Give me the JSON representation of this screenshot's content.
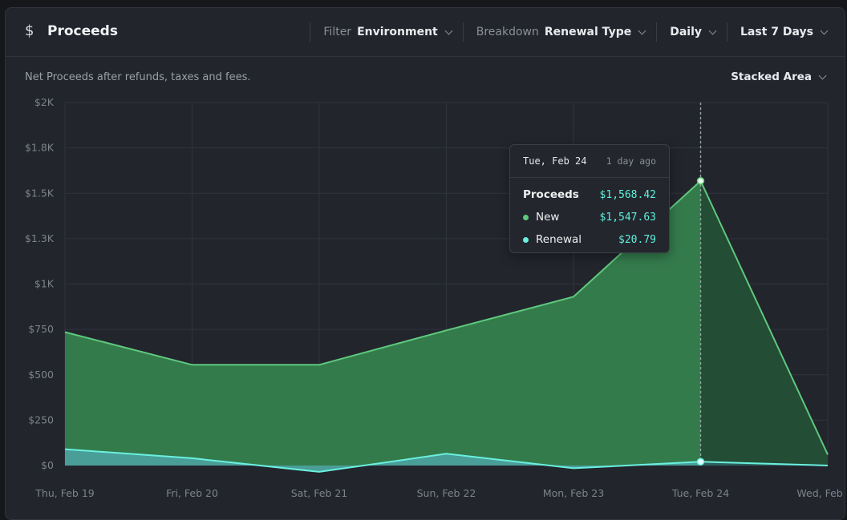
{
  "header": {
    "icon": "dollar-icon",
    "title": "Proceeds",
    "controls": [
      {
        "label": "Filter",
        "value": "Environment"
      },
      {
        "label": "Breakdown",
        "value": "Renewal Type"
      },
      {
        "label": "",
        "value": "Daily"
      },
      {
        "label": "",
        "value": "Last 7 Days"
      }
    ]
  },
  "subtitle": "Net Proceeds after refunds, taxes and fees.",
  "view_mode": "Stacked Area",
  "tooltip": {
    "date": "Tue, Feb 24",
    "ago": "1 day ago",
    "rows": [
      {
        "name": "Proceeds",
        "value": "$1,568.42"
      },
      {
        "name": "New",
        "value": "$1,547.63"
      },
      {
        "name": "Renewal",
        "value": "$20.79"
      }
    ]
  },
  "colors": {
    "new_line": "#5fc97e",
    "new_fill": "#347b4c",
    "new_fill_dim": "#234d34",
    "renewal_line": "#6af0e0",
    "renewal_fill": "#4a9e98",
    "renewal_fill_dim": "#2d5f5b",
    "total_amount": "#5ff0dc"
  },
  "chart_data": {
    "type": "area",
    "stacked": true,
    "categories": [
      "Thu, Feb 19",
      "Fri, Feb 20",
      "Sat, Feb 21",
      "Sun, Feb 22",
      "Mon, Feb 23",
      "Tue, Feb 24",
      "Wed, Feb 25"
    ],
    "series": [
      {
        "name": "New",
        "values": [
          645,
          515,
          590,
          680,
          945,
          1547.63,
          60
        ]
      },
      {
        "name": "Renewal",
        "values": [
          90,
          40,
          -35,
          65,
          -15,
          20.79,
          0
        ]
      }
    ],
    "ylim": [
      0,
      2000
    ],
    "y_ticks": [
      {
        "value": 0,
        "label": "$0"
      },
      {
        "value": 250,
        "label": "$250"
      },
      {
        "value": 500,
        "label": "$500"
      },
      {
        "value": 750,
        "label": "$750"
      },
      {
        "value": 1000,
        "label": "$1K"
      },
      {
        "value": 1250,
        "label": "$1.3K"
      },
      {
        "value": 1500,
        "label": "$1.5K"
      },
      {
        "value": 1750,
        "label": "$1.8K"
      },
      {
        "value": 2000,
        "label": "$2K"
      }
    ],
    "highlight_index": 5,
    "grid": true
  }
}
